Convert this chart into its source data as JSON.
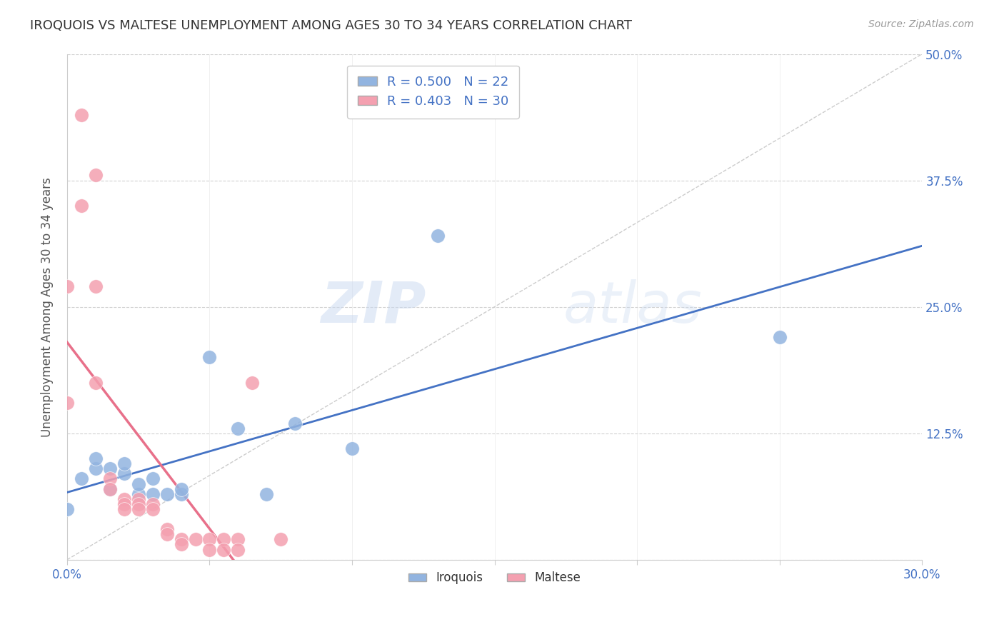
{
  "title": "IROQUOIS VS MALTESE UNEMPLOYMENT AMONG AGES 30 TO 34 YEARS CORRELATION CHART",
  "source": "Source: ZipAtlas.com",
  "ylabel": "Unemployment Among Ages 30 to 34 years",
  "xlim": [
    0.0,
    0.3
  ],
  "ylim": [
    0.0,
    0.5
  ],
  "xticks": [
    0.0,
    0.05,
    0.1,
    0.15,
    0.2,
    0.25,
    0.3
  ],
  "xticklabels": [
    "0.0%",
    "",
    "",
    "",
    "",
    "",
    "30.0%"
  ],
  "yticks": [
    0.0,
    0.125,
    0.25,
    0.375,
    0.5
  ],
  "yticklabels": [
    "",
    "12.5%",
    "25.0%",
    "37.5%",
    "50.0%"
  ],
  "iroquois_R": 0.5,
  "iroquois_N": 22,
  "maltese_R": 0.403,
  "maltese_N": 30,
  "iroquois_color": "#92b4e0",
  "maltese_color": "#f4a0b0",
  "trendline_iroquois_color": "#4472c4",
  "trendline_maltese_color": "#e8708a",
  "watermark_zip": "ZIP",
  "watermark_atlas": "atlas",
  "iroquois_x": [
    0.0,
    0.005,
    0.01,
    0.01,
    0.015,
    0.015,
    0.02,
    0.02,
    0.025,
    0.025,
    0.03,
    0.03,
    0.035,
    0.04,
    0.04,
    0.05,
    0.06,
    0.07,
    0.08,
    0.1,
    0.13,
    0.25
  ],
  "iroquois_y": [
    0.05,
    0.08,
    0.09,
    0.1,
    0.07,
    0.09,
    0.085,
    0.095,
    0.065,
    0.075,
    0.065,
    0.08,
    0.065,
    0.065,
    0.07,
    0.2,
    0.13,
    0.065,
    0.135,
    0.11,
    0.32,
    0.22
  ],
  "maltese_x": [
    0.0,
    0.0,
    0.005,
    0.005,
    0.01,
    0.01,
    0.01,
    0.015,
    0.015,
    0.02,
    0.02,
    0.02,
    0.025,
    0.025,
    0.025,
    0.03,
    0.03,
    0.035,
    0.035,
    0.04,
    0.04,
    0.045,
    0.05,
    0.05,
    0.055,
    0.055,
    0.06,
    0.06,
    0.065,
    0.075
  ],
  "maltese_y": [
    0.155,
    0.27,
    0.35,
    0.44,
    0.38,
    0.27,
    0.175,
    0.08,
    0.07,
    0.06,
    0.055,
    0.05,
    0.06,
    0.055,
    0.05,
    0.055,
    0.05,
    0.03,
    0.025,
    0.02,
    0.015,
    0.02,
    0.02,
    0.01,
    0.02,
    0.01,
    0.02,
    0.01,
    0.175,
    0.02
  ]
}
